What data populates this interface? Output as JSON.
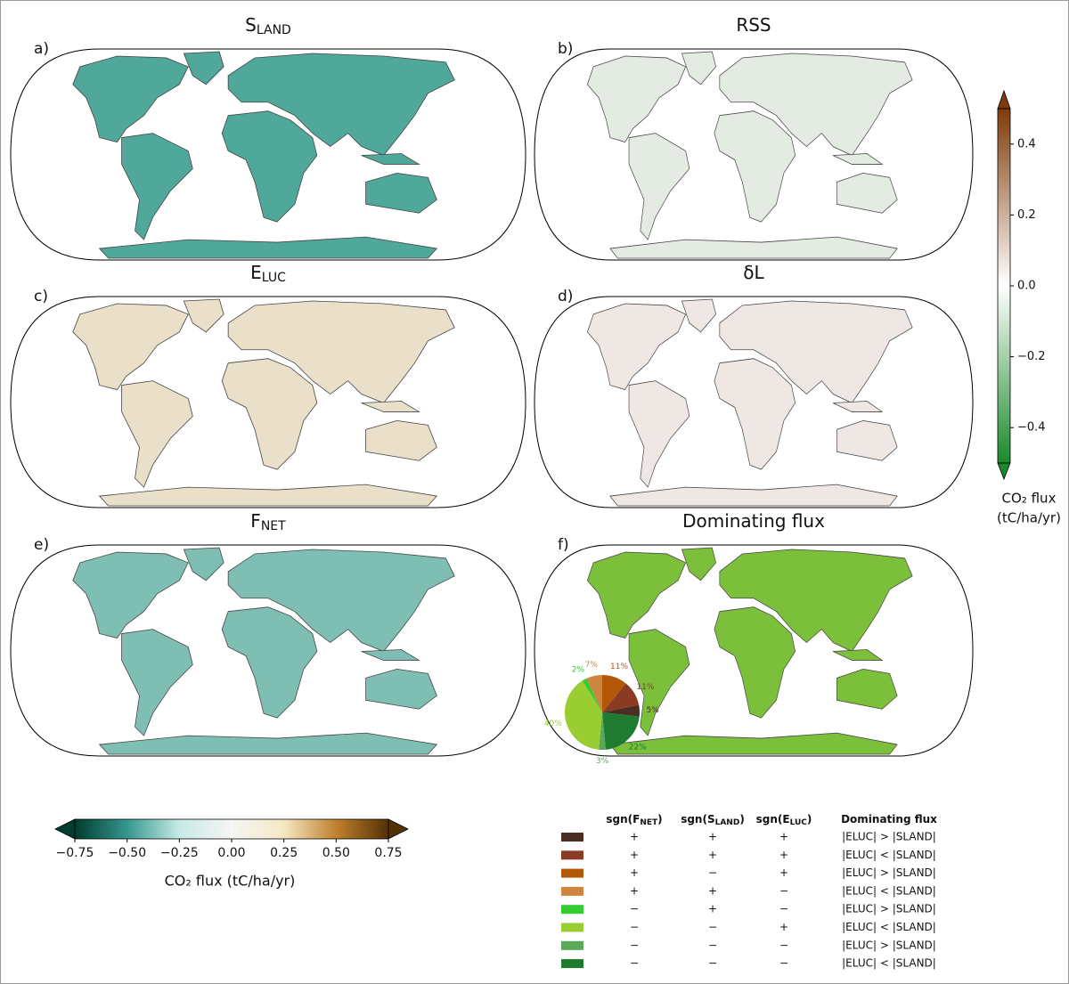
{
  "panels": [
    {
      "label": "a)",
      "title": "S",
      "title_sub": "LAND",
      "land_color": "#4fa89a"
    },
    {
      "label": "b)",
      "title": "RSS",
      "land_color": "#e4ebe2"
    },
    {
      "label": "c)",
      "title": "E",
      "title_sub": "LUC",
      "land_color": "#eadfc8"
    },
    {
      "label": "d)",
      "title": "δL",
      "land_color": "#efe7e4"
    },
    {
      "label": "e)",
      "title": "F",
      "title_sub": "NET",
      "land_color": "#7fbfb3"
    },
    {
      "label": "f)",
      "title": "Dominating flux",
      "land_color": "#7cbf3a"
    }
  ],
  "chart_data": [
    {
      "type": "colorbar",
      "orientation": "vertical",
      "ylim": [
        -0.5,
        0.5
      ],
      "yticks": [
        0.4,
        0.2,
        {
          "value": 0,
          "label": "0.0"
        },
        {
          "value": -0.2,
          "label": "−0.2"
        },
        {
          "value": -0.4,
          "label": "−0.4"
        }
      ],
      "colors": [
        "#1b8a2a",
        "#ffffff",
        "#7f3b08"
      ],
      "ylabel_lines": [
        "CO₂ flux",
        "(tC/ha/yr)"
      ]
    },
    {
      "type": "colorbar",
      "orientation": "horizontal",
      "xlim": [
        -0.75,
        0.75
      ],
      "xticks": [
        {
          "value": -0.75,
          "label": "−0.75"
        },
        {
          "value": -0.5,
          "label": "−0.50"
        },
        {
          "value": -0.25,
          "label": "−0.25"
        },
        {
          "value": 0,
          "label": "0.00"
        },
        0.25,
        {
          "value": 0.5,
          "label": "0.50"
        },
        0.75
      ],
      "colors": [
        "#003c30",
        "#35978f",
        "#c7eae5",
        "#f5f5f5",
        "#f6e8c3",
        "#bf812d",
        "#543005"
      ],
      "xlabel": "CO₂ flux (tC/ha/yr)"
    },
    {
      "type": "pie",
      "values": [
        11,
        11,
        5,
        22,
        3,
        40,
        2,
        7
      ],
      "value_labels": [
        "11%",
        "11%",
        "5%",
        "22%",
        "3%",
        "40%",
        "2%",
        "7%"
      ],
      "colors": [
        "#b35806",
        "#8b3a24",
        "#4a2e22",
        "#1e7b30",
        "#5aa85a",
        "#9acd32",
        "#33cc33",
        "#cd853f"
      ]
    }
  ],
  "legend_table": {
    "headers": [
      {
        "text": "sgn(F",
        "sub": "NET",
        "end": ")"
      },
      {
        "text": "sgn(S",
        "sub": "LAND",
        "end": ")"
      },
      {
        "text": "sgn(E",
        "sub": "LUC",
        "end": ")"
      },
      {
        "text": "Dominating flux"
      }
    ],
    "rows": [
      {
        "color": "#4a2e22",
        "cells": [
          "+",
          "+",
          "+",
          "|ELUC| > |SLAND|"
        ]
      },
      {
        "color": "#8b3a24",
        "cells": [
          "+",
          "+",
          "+",
          "|ELUC| < |SLAND|"
        ]
      },
      {
        "color": "#b35806",
        "cells": [
          "+",
          "−",
          "+",
          "|ELUC| > |SLAND|"
        ]
      },
      {
        "color": "#cd853f",
        "cells": [
          "+",
          "+",
          "−",
          "|ELUC| < |SLAND|"
        ]
      },
      {
        "color": "#33cc33",
        "cells": [
          "−",
          "+",
          "−",
          "|ELUC| > |SLAND|"
        ]
      },
      {
        "color": "#9acd32",
        "cells": [
          "−",
          "−",
          "+",
          "|ELUC| < |SLAND|"
        ]
      },
      {
        "color": "#5aa85a",
        "cells": [
          "−",
          "−",
          "−",
          "|ELUC| > |SLAND|"
        ]
      },
      {
        "color": "#1e7b30",
        "cells": [
          "−",
          "−",
          "−",
          "|ELUC| < |SLAND|"
        ]
      }
    ]
  }
}
